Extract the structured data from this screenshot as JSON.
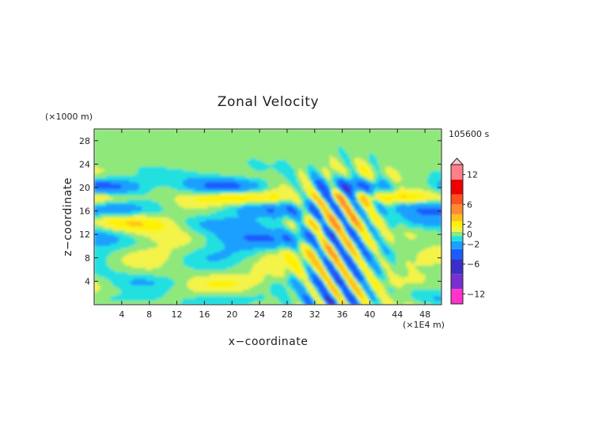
{
  "chart_data": {
    "type": "heatmap",
    "title": "Zonal Velocity",
    "xlabel": "x−coordinate",
    "ylabel": "z−coordinate",
    "x_unit": "(×1E4 m)",
    "y_unit": "(×1000 m)",
    "time_label": "105600 s",
    "xlim": [
      0,
      50.4
    ],
    "ylim": [
      0,
      30
    ],
    "x_ticks": [
      4,
      8,
      12,
      16,
      20,
      24,
      28,
      32,
      36,
      40,
      44,
      48
    ],
    "y_ticks": [
      4,
      8,
      12,
      16,
      20,
      24,
      28
    ],
    "colorbar": {
      "min": -14,
      "max": 14,
      "labeled_ticks": [
        "12",
        "6",
        "2",
        "0",
        "−2",
        "−6",
        "−12"
      ],
      "labeled_values": [
        12,
        6,
        2,
        0,
        -2,
        -6,
        -12
      ]
    },
    "field_summary": "Horizontal banded field: near-zero above 24, alternating positive/negative layered bands between z=2 and z=22, strong oscillatory pattern concentrated near x=30-40."
  }
}
